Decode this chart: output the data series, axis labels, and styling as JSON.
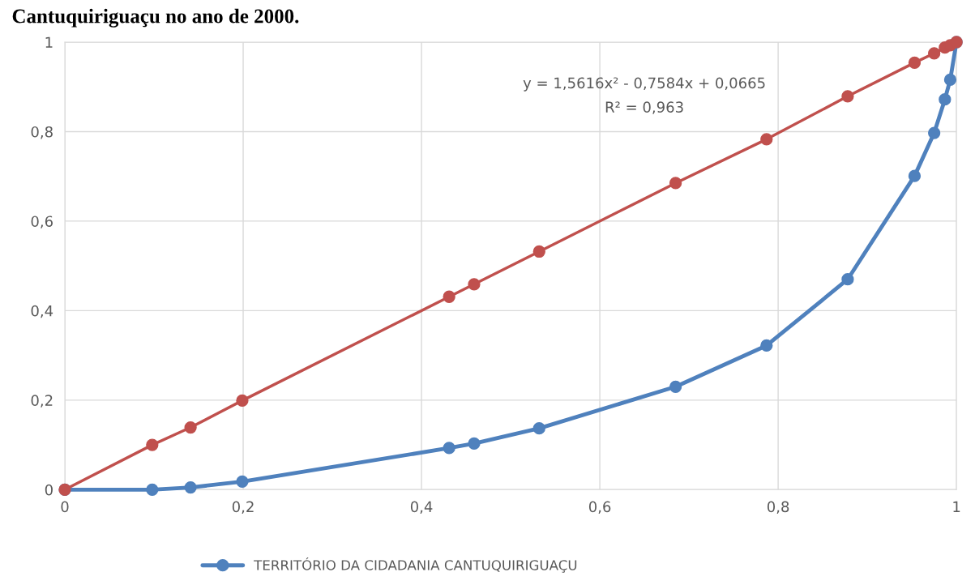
{
  "chart_data": {
    "type": "line",
    "title": "Cantuquiriguaçu no ano de 2000.",
    "x": [
      0,
      0.098,
      0.141,
      0.199,
      0.431,
      0.459,
      0.532,
      0.685,
      0.787,
      0.878,
      0.953,
      0.975,
      0.987,
      0.993,
      1
    ],
    "series": [
      {
        "name": "TERRITÓRIO DA CIDADANIA CANTUQUIRIGUAÇU",
        "color": "#4f81bd",
        "values": [
          0,
          0,
          0.005,
          0.018,
          0.093,
          0.103,
          0.137,
          0.23,
          0.322,
          0.47,
          0.701,
          0.797,
          0.872,
          0.916,
          1
        ]
      },
      {
        "color": "#c0504d",
        "values": [
          0,
          0.1,
          0.139,
          0.199,
          0.431,
          0.459,
          0.532,
          0.685,
          0.783,
          0.879,
          0.954,
          0.975,
          0.988,
          0.993,
          1
        ]
      }
    ],
    "annotations": [
      "y = 1,5616x² - 0,7584x + 0,0665",
      "R² = 0,963"
    ],
    "xlim": [
      0,
      1
    ],
    "ylim": [
      0,
      1
    ],
    "xticks": [
      0,
      {
        "value": 0.2,
        "label": "0,2"
      },
      {
        "value": 0.4,
        "label": "0,4"
      },
      {
        "value": 0.6,
        "label": "0,6"
      },
      {
        "value": 0.8,
        "label": "0,8"
      },
      1
    ],
    "yticks": [
      0,
      {
        "value": 0.2,
        "label": "0,2"
      },
      {
        "value": 0.4,
        "label": "0,4"
      },
      {
        "value": 0.6,
        "label": "0,6"
      },
      {
        "value": 0.8,
        "label": "0,8"
      },
      1
    ],
    "grid": true,
    "legend": "bottom",
    "marker": "circle",
    "line_style": "solid"
  }
}
